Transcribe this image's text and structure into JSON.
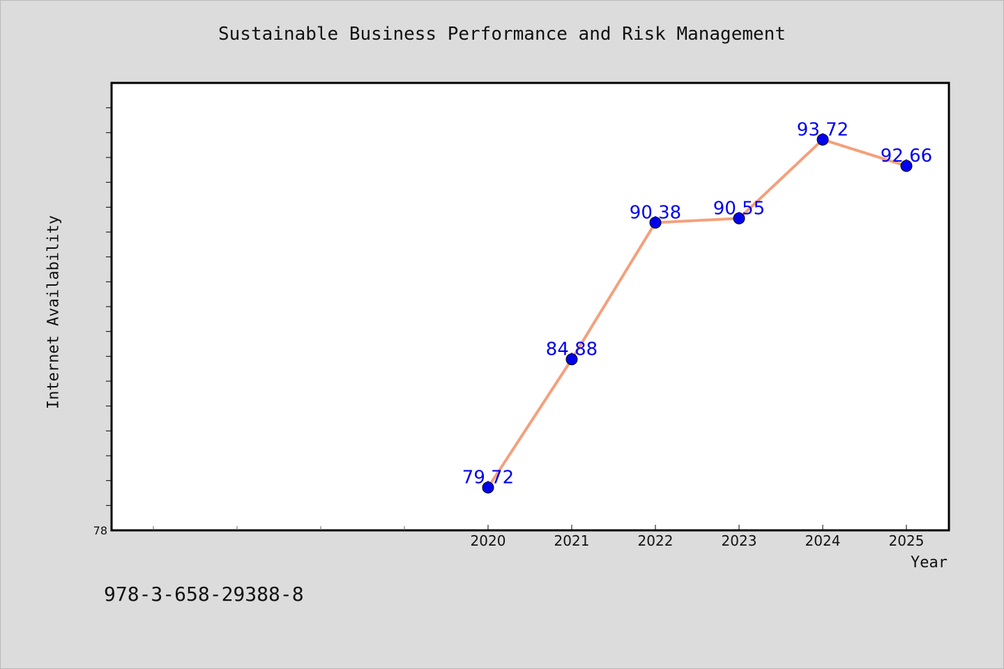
{
  "chart_data": {
    "type": "line",
    "title": "Sustainable Business Performance and Risk Management",
    "xlabel": "Year",
    "ylabel": "Internet Availability",
    "x": [
      "2020",
      "2021",
      "2022",
      "2023",
      "2024",
      "2025"
    ],
    "values": [
      79.72,
      84.88,
      90.38,
      90.55,
      93.72,
      92.66
    ],
    "data_labels": [
      "79.72",
      "84.88",
      "90.38",
      "90.55",
      "93.72",
      "92.66"
    ],
    "ylim": [
      78,
      96
    ],
    "y_tick_labels": [
      "78"
    ],
    "grid": false,
    "line_color": "#f4a07c",
    "marker_color": "#0000ee",
    "label_color": "#0000ee"
  },
  "footer": {
    "isbn": "978-3-658-29388-8"
  }
}
